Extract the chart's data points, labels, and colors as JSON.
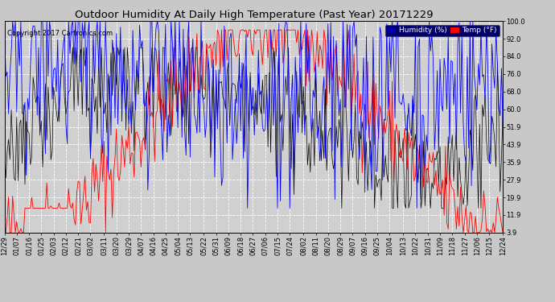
{
  "title": "Outdoor Humidity At Daily High Temperature (Past Year) 20171229",
  "copyright": "Copyright 2017 Cartronics.com",
  "legend_humidity": "Humidity (%)",
  "legend_temp": "Temp (°F)",
  "ylabel_right": [
    "100.0",
    "92.0",
    "84.0",
    "76.0",
    "68.0",
    "60.0",
    "51.9",
    "43.9",
    "35.9",
    "27.9",
    "19.9",
    "11.9",
    "3.9"
  ],
  "yticks": [
    100.0,
    92.0,
    84.0,
    76.0,
    68.0,
    60.0,
    51.9,
    43.9,
    35.9,
    27.9,
    19.9,
    11.9,
    3.9
  ],
  "ylim": [
    3.9,
    100.0
  ],
  "xlabels": [
    "12/29",
    "01/07",
    "01/16",
    "01/25",
    "02/03",
    "02/12",
    "02/21",
    "03/02",
    "03/11",
    "03/20",
    "03/29",
    "04/07",
    "04/16",
    "04/25",
    "05/04",
    "05/13",
    "05/22",
    "05/31",
    "06/09",
    "06/18",
    "06/27",
    "07/06",
    "07/15",
    "07/24",
    "08/02",
    "08/11",
    "08/20",
    "08/29",
    "09/07",
    "09/16",
    "09/25",
    "10/04",
    "10/13",
    "10/22",
    "10/31",
    "11/09",
    "11/18",
    "11/27",
    "12/06",
    "12/15",
    "12/24"
  ],
  "bg_color": "#c8c8c8",
  "plot_bg_color": "#d0d0d0",
  "grid_color": "#ffffff",
  "title_color": "#000000",
  "humidity_color": "#0000ff",
  "temp_color": "#ff0000",
  "black_color": "#000000",
  "legend_humidity_bg": "#0000aa",
  "legend_temp_bg": "#ff0000",
  "title_fontsize": 9.5,
  "copyright_fontsize": 6,
  "tick_fontsize": 6,
  "legend_fontsize": 6.5
}
